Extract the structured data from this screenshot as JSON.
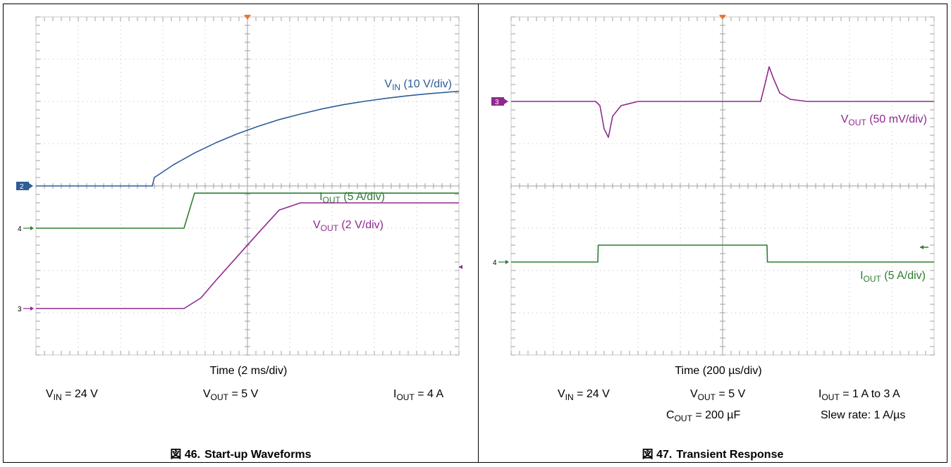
{
  "figures": [
    {
      "caption": {
        "prefix": "図 46.",
        "text": "Start-up Waveforms"
      },
      "time_label": "Time (2 ms/div)",
      "conditions": [
        {
          "main": "V",
          "sub": "IN",
          "rest": " = 24 V"
        },
        {
          "main": "V",
          "sub": "OUT",
          "rest": " = 5 V"
        },
        {
          "main": "I",
          "sub": "OUT",
          "rest": " = 4 A"
        }
      ]
    },
    {
      "caption": {
        "prefix": "図 47.",
        "text": "Transient Response"
      },
      "time_label": "Time (200 µs/div)",
      "conditions": [
        {
          "main": "V",
          "sub": "IN",
          "rest": " = 24 V"
        },
        {
          "main": "V",
          "sub": "OUT",
          "rest": " = 5 V"
        },
        {
          "main": "I",
          "sub": "OUT",
          "rest": " = 1 A to 3 A"
        },
        {
          "main": "C",
          "sub": "OUT",
          "rest": " = 200 µF"
        },
        {
          "main": "",
          "sub": "",
          "rest": "Slew rate: 1 A/µs"
        }
      ]
    }
  ],
  "chart_data": [
    {
      "type": "line",
      "x_unit_label": "Time (2 ms/div)",
      "divisions": {
        "x": 10,
        "y": 8
      },
      "series": [
        {
          "name": "VIN",
          "label_main": "V",
          "label_sub": "IN",
          "label_rest": " (10 V/div)",
          "channel": "2",
          "color": "#2e5d97",
          "x": [
            0,
            5.5,
            5.6,
            6.5,
            7.5,
            8.5,
            9.5,
            10.5,
            11.5,
            12.5,
            13.5,
            14.5,
            15.5,
            16.5,
            17.5,
            18.5,
            20
          ],
          "y": [
            0,
            0,
            0.2,
            0.5,
            0.78,
            1.02,
            1.23,
            1.41,
            1.57,
            1.7,
            1.82,
            1.92,
            2.0,
            2.07,
            2.13,
            2.18,
            2.24
          ]
        },
        {
          "name": "IOUT",
          "label_main": "I",
          "label_sub": "OUT",
          "label_rest": " (5 A/div)",
          "channel": "4",
          "color": "#2e7d32",
          "x": [
            0,
            7.0,
            7.5,
            20
          ],
          "y": [
            0,
            0,
            0.83,
            0.83
          ]
        },
        {
          "name": "VOUT",
          "label_main": "V",
          "label_sub": "OUT",
          "label_rest": " (2 V/div)",
          "channel": "3",
          "color": "#8e2a8e",
          "x": [
            0,
            7.0,
            7.8,
            8.5,
            9.5,
            10.5,
            11.5,
            12.5,
            20
          ],
          "y": [
            0,
            0,
            0.25,
            0.66,
            1.22,
            1.78,
            2.33,
            2.5,
            2.5
          ]
        }
      ]
    },
    {
      "type": "line",
      "x_unit_label": "Time (200 µs/div)",
      "divisions": {
        "x": 10,
        "y": 8
      },
      "series": [
        {
          "name": "VOUT",
          "label_main": "V",
          "label_sub": "OUT",
          "label_rest": " (50 mV/div)",
          "channel": "3",
          "color": "#8e2a8e",
          "x": [
            0,
            400,
            420,
            440,
            460,
            480,
            520,
            600,
            800,
            1100,
            1180,
            1200,
            1220,
            1240,
            1270,
            1320,
            1400,
            2000
          ],
          "y": [
            0,
            0,
            -0.1,
            -0.65,
            -0.85,
            -0.35,
            -0.1,
            0,
            0,
            0,
            0,
            0.4,
            0.82,
            0.55,
            0.2,
            0.05,
            0,
            0
          ]
        },
        {
          "name": "IOUT",
          "label_main": "I",
          "label_sub": "OUT",
          "label_rest": " (5 A/div)",
          "channel": "4",
          "color": "#2e7d32",
          "x": [
            0,
            410,
            412,
            1210,
            1212,
            2000
          ],
          "y": [
            0,
            0,
            0.4,
            0.4,
            0,
            0
          ]
        }
      ]
    }
  ]
}
